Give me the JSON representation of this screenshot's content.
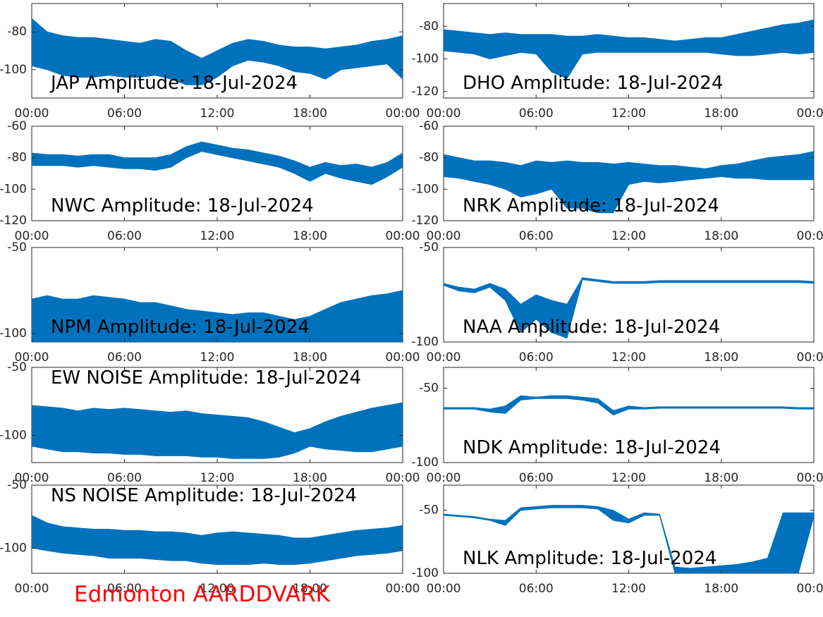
{
  "chart_data": [
    {
      "type": "band",
      "title": "JAP Amplitude: 18-Jul-2024",
      "title_position": "bottom",
      "color": "#0072bd",
      "x": [
        0,
        1,
        2,
        3,
        4,
        5,
        6,
        7,
        8,
        9,
        10,
        11,
        12,
        13,
        14,
        15,
        16,
        17,
        18,
        19,
        20,
        21,
        22,
        23,
        24
      ],
      "high": [
        -73,
        -80,
        -82,
        -83,
        -83,
        -84,
        -85,
        -86,
        -84,
        -85,
        -90,
        -94,
        -90,
        -86,
        -84,
        -85,
        -87,
        -88,
        -88,
        -89,
        -88,
        -87,
        -85,
        -84,
        -82
      ],
      "low": [
        -98,
        -100,
        -103,
        -104,
        -104,
        -103,
        -104,
        -104,
        -103,
        -105,
        -108,
        -108,
        -104,
        -98,
        -95,
        -96,
        -98,
        -101,
        -102,
        -105,
        -100,
        -99,
        -98,
        -97,
        -105
      ],
      "xlim": [
        0,
        24
      ],
      "xticks": [
        {
          "value": 0,
          "label": "00:00"
        },
        {
          "value": 6,
          "label": "06:00"
        },
        {
          "value": 12,
          "label": "12:00"
        },
        {
          "value": 18,
          "label": "18:00"
        },
        {
          "value": 24,
          "label": "00:00"
        }
      ],
      "ylim": [
        -115,
        -65
      ],
      "yticks": [
        -100,
        -80
      ]
    },
    {
      "type": "band",
      "title": "DHO Amplitude: 18-Jul-2024",
      "title_position": "bottom",
      "color": "#0072bd",
      "x": [
        0,
        1,
        2,
        3,
        4,
        5,
        6,
        7,
        8,
        9,
        10,
        11,
        12,
        13,
        14,
        15,
        16,
        17,
        18,
        19,
        20,
        21,
        22,
        23,
        24
      ],
      "high": [
        -82,
        -83,
        -84,
        -85,
        -84,
        -85,
        -85,
        -85,
        -86,
        -86,
        -85,
        -86,
        -87,
        -87,
        -88,
        -89,
        -88,
        -87,
        -87,
        -85,
        -83,
        -81,
        -79,
        -78,
        -76
      ],
      "low": [
        -95,
        -96,
        -97,
        -100,
        -98,
        -96,
        -97,
        -108,
        -112,
        -97,
        -96,
        -96,
        -96,
        -96,
        -96,
        -96,
        -96,
        -96,
        -97,
        -98,
        -98,
        -97,
        -96,
        -97,
        -96
      ],
      "xlim": [
        0,
        24
      ],
      "xticks": [
        {
          "value": 0,
          "label": "00:00"
        },
        {
          "value": 6,
          "label": "06:00"
        },
        {
          "value": 12,
          "label": "12:00"
        },
        {
          "value": 18,
          "label": "18:00"
        },
        {
          "value": 24,
          "label": "00:00"
        }
      ],
      "ylim": [
        -124,
        -66
      ],
      "yticks": [
        -120,
        -100,
        -80
      ]
    },
    {
      "type": "band",
      "title": "NWC Amplitude: 18-Jul-2024",
      "title_position": "bottom",
      "color": "#0072bd",
      "x": [
        0,
        1,
        2,
        3,
        4,
        5,
        6,
        7,
        8,
        9,
        10,
        11,
        12,
        13,
        14,
        15,
        16,
        17,
        18,
        19,
        20,
        21,
        22,
        23,
        24
      ],
      "high": [
        -77,
        -78,
        -78,
        -79,
        -78,
        -78,
        -80,
        -80,
        -80,
        -78,
        -73,
        -70,
        -72,
        -74,
        -75,
        -77,
        -79,
        -82,
        -86,
        -83,
        -85,
        -84,
        -86,
        -83,
        -77
      ],
      "low": [
        -85,
        -85,
        -85,
        -86,
        -85,
        -86,
        -87,
        -87,
        -88,
        -86,
        -80,
        -76,
        -78,
        -80,
        -82,
        -84,
        -86,
        -90,
        -95,
        -90,
        -93,
        -95,
        -97,
        -92,
        -86
      ],
      "xlim": [
        0,
        24
      ],
      "xticks": [
        {
          "value": 0,
          "label": "00:00"
        },
        {
          "value": 6,
          "label": "06:00"
        },
        {
          "value": 12,
          "label": "12:00"
        },
        {
          "value": 18,
          "label": "18:00"
        },
        {
          "value": 24,
          "label": "00:00"
        }
      ],
      "ylim": [
        -120,
        -60
      ],
      "yticks": [
        -120,
        -100,
        -80,
        -60
      ]
    },
    {
      "type": "band",
      "title": "NRK Amplitude: 18-Jul-2024",
      "title_position": "bottom",
      "color": "#0072bd",
      "x": [
        0,
        1,
        2,
        3,
        4,
        5,
        6,
        7,
        8,
        9,
        10,
        11,
        12,
        13,
        14,
        15,
        16,
        17,
        18,
        19,
        20,
        21,
        22,
        23,
        24
      ],
      "high": [
        -78,
        -80,
        -82,
        -82,
        -83,
        -85,
        -82,
        -83,
        -82,
        -83,
        -83,
        -84,
        -83,
        -84,
        -85,
        -85,
        -86,
        -87,
        -85,
        -84,
        -82,
        -80,
        -79,
        -78,
        -76
      ],
      "low": [
        -92,
        -93,
        -95,
        -97,
        -100,
        -105,
        -103,
        -100,
        -112,
        -112,
        -115,
        -115,
        -97,
        -95,
        -96,
        -95,
        -94,
        -93,
        -92,
        -93,
        -93,
        -94,
        -94,
        -94,
        -94
      ],
      "xlim": [
        0,
        24
      ],
      "xticks": [
        {
          "value": 0,
          "label": "00:00"
        },
        {
          "value": 6,
          "label": "06:00"
        },
        {
          "value": 12,
          "label": "12:00"
        },
        {
          "value": 18,
          "label": "18:00"
        },
        {
          "value": 24,
          "label": "00:00"
        }
      ],
      "ylim": [
        -120,
        -60
      ],
      "yticks": [
        -120,
        -100,
        -80,
        -60
      ]
    },
    {
      "type": "band",
      "title": "NPM Amplitude: 18-Jul-2024",
      "title_position": "bottom",
      "color": "#0072bd",
      "x": [
        0,
        1,
        2,
        3,
        4,
        5,
        6,
        7,
        8,
        9,
        10,
        11,
        12,
        13,
        14,
        15,
        16,
        17,
        18,
        19,
        20,
        21,
        22,
        23,
        24
      ],
      "high": [
        -80,
        -78,
        -80,
        -80,
        -78,
        -79,
        -80,
        -82,
        -82,
        -84,
        -86,
        -87,
        -88,
        -89,
        -88,
        -88,
        -90,
        -92,
        -90,
        -86,
        -82,
        -80,
        -78,
        -77,
        -75
      ],
      "low": [
        -105,
        -105,
        -105,
        -105,
        -105,
        -105,
        -105,
        -105,
        -105,
        -105,
        -105,
        -105,
        -105,
        -105,
        -105,
        -105,
        -105,
        -105,
        -105,
        -105,
        -105,
        -105,
        -105,
        -105,
        -105
      ],
      "xlim": [
        0,
        24
      ],
      "xticks": [
        {
          "value": 0,
          "label": "00:00"
        },
        {
          "value": 6,
          "label": "06:00"
        },
        {
          "value": 12,
          "label": "12:00"
        },
        {
          "value": 18,
          "label": "18:00"
        },
        {
          "value": 24,
          "label": "00:00"
        }
      ],
      "ylim": [
        -105,
        -50
      ],
      "yticks": [
        -100,
        -50
      ]
    },
    {
      "type": "band",
      "title": "NAA Amplitude: 18-Jul-2024",
      "title_position": "bottom",
      "color": "#0072bd",
      "x": [
        0,
        1,
        2,
        3,
        4,
        5,
        6,
        7,
        8,
        9,
        10,
        11,
        12,
        13,
        14,
        15,
        16,
        17,
        18,
        19,
        20,
        21,
        22,
        23,
        24
      ],
      "high": [
        -69,
        -71,
        -72,
        -69,
        -72,
        -80,
        -75,
        -78,
        -80,
        -66,
        -67,
        -68,
        -68,
        -68,
        -67.5,
        -67.5,
        -67.5,
        -67.5,
        -67.5,
        -67.5,
        -67.5,
        -67.5,
        -67.5,
        -67.5,
        -68
      ],
      "low": [
        -70,
        -73,
        -74,
        -71,
        -78,
        -95,
        -88,
        -95,
        -98,
        -67,
        -68,
        -69,
        -69,
        -69,
        -68.5,
        -68.5,
        -68.5,
        -68.5,
        -68.5,
        -68.5,
        -68.5,
        -68.5,
        -68.5,
        -68.5,
        -69
      ],
      "xlim": [
        0,
        24
      ],
      "xticks": [
        {
          "value": 0,
          "label": "00:00"
        },
        {
          "value": 6,
          "label": "06:00"
        },
        {
          "value": 12,
          "label": "12:00"
        },
        {
          "value": 18,
          "label": "18:00"
        },
        {
          "value": 24,
          "label": "00:00"
        }
      ],
      "ylim": [
        -100,
        -50
      ],
      "yticks": [
        -100,
        -50
      ]
    },
    {
      "type": "band",
      "title": "EW NOISE Amplitude: 18-Jul-2024",
      "title_position": "top",
      "color": "#0072bd",
      "x": [
        0,
        1,
        2,
        3,
        4,
        5,
        6,
        7,
        8,
        9,
        10,
        11,
        12,
        13,
        14,
        15,
        16,
        17,
        18,
        19,
        20,
        21,
        22,
        23,
        24
      ],
      "high": [
        -78,
        -79,
        -80,
        -82,
        -80,
        -81,
        -80,
        -81,
        -82,
        -83,
        -82,
        -84,
        -85,
        -86,
        -87,
        -90,
        -94,
        -98,
        -95,
        -90,
        -86,
        -83,
        -80,
        -78,
        -76
      ],
      "low": [
        -108,
        -110,
        -112,
        -112,
        -113,
        -113,
        -114,
        -114,
        -115,
        -115,
        -115,
        -116,
        -116,
        -117,
        -117,
        -117,
        -116,
        -113,
        -108,
        -110,
        -111,
        -112,
        -112,
        -110,
        -108
      ],
      "xlim": [
        0,
        24
      ],
      "xticks": [
        {
          "value": 0,
          "label": "00:00"
        },
        {
          "value": 6,
          "label": "06:00"
        },
        {
          "value": 12,
          "label": "12:00"
        },
        {
          "value": 18,
          "label": "18:00"
        },
        {
          "value": 24,
          "label": "00:00"
        }
      ],
      "ylim": [
        -120,
        -50
      ],
      "yticks": [
        -100,
        -50
      ]
    },
    {
      "type": "band",
      "title": "NDK Amplitude: 18-Jul-2024",
      "title_position": "bottom",
      "color": "#0072bd",
      "x": [
        0,
        1,
        2,
        3,
        4,
        5,
        6,
        7,
        8,
        9,
        10,
        11,
        12,
        13,
        14,
        15,
        16,
        17,
        18,
        19,
        20,
        21,
        22,
        23,
        24
      ],
      "high": [
        -63,
        -63,
        -63,
        -64,
        -62,
        -55,
        -56,
        -55,
        -55,
        -56,
        -57,
        -65,
        -62,
        -63,
        -62.5,
        -62.5,
        -62.5,
        -62.5,
        -62.5,
        -62.5,
        -62.5,
        -62.5,
        -62.5,
        -63,
        -63
      ],
      "low": [
        -64,
        -64,
        -64,
        -66,
        -67,
        -58,
        -57,
        -57,
        -57,
        -58,
        -60,
        -68,
        -64,
        -64,
        -63.5,
        -63.5,
        -63.5,
        -63.5,
        -63.5,
        -63.5,
        -63.5,
        -63.5,
        -63.5,
        -64,
        -64
      ],
      "xlim": [
        0,
        24
      ],
      "xticks": [
        {
          "value": 0,
          "label": "00:00"
        },
        {
          "value": 6,
          "label": "06:00"
        },
        {
          "value": 12,
          "label": "12:00"
        },
        {
          "value": 18,
          "label": "18:00"
        },
        {
          "value": 24,
          "label": "00:00"
        }
      ],
      "ylim": [
        -100,
        -36
      ],
      "yticks": [
        -100,
        -50
      ]
    },
    {
      "type": "band",
      "title": "NS NOISE Amplitude: 18-Jul-2024",
      "title_position": "top",
      "color": "#0072bd",
      "x": [
        0,
        1,
        2,
        3,
        4,
        5,
        6,
        7,
        8,
        9,
        10,
        11,
        12,
        13,
        14,
        15,
        16,
        17,
        18,
        19,
        20,
        21,
        22,
        23,
        24
      ],
      "high": [
        -74,
        -80,
        -83,
        -84,
        -85,
        -85,
        -86,
        -86,
        -87,
        -87,
        -88,
        -90,
        -88,
        -87,
        -88,
        -89,
        -90,
        -92,
        -92,
        -90,
        -88,
        -86,
        -85,
        -84,
        -82
      ],
      "low": [
        -100,
        -102,
        -104,
        -105,
        -106,
        -108,
        -108,
        -108,
        -109,
        -110,
        -110,
        -112,
        -113,
        -113,
        -113,
        -112,
        -113,
        -113,
        -112,
        -110,
        -108,
        -106,
        -105,
        -104,
        -102
      ],
      "xlim": [
        0,
        24
      ],
      "xticks": [
        {
          "value": 0,
          "label": "00:00"
        },
        {
          "value": 6,
          "label": "06:00"
        },
        {
          "value": 12,
          "label": "12:00"
        },
        {
          "value": 18,
          "label": "18:00"
        },
        {
          "value": 24,
          "label": "00:00"
        }
      ],
      "ylim": [
        -120,
        -50
      ],
      "yticks": [
        -100,
        -50
      ]
    },
    {
      "type": "band",
      "title": "NLK Amplitude: 18-Jul-2024",
      "title_position": "bottom",
      "color": "#0072bd",
      "x": [
        0,
        1,
        2,
        3,
        4,
        5,
        6,
        7,
        8,
        9,
        10,
        11,
        12,
        13,
        14,
        15,
        16,
        17,
        18,
        19,
        20,
        21,
        22,
        23,
        24
      ],
      "high": [
        -53,
        -54,
        -55,
        -57,
        -58,
        -48,
        -47,
        -46,
        -46,
        -46,
        -47,
        -50,
        -57,
        -52,
        -53,
        -95,
        -96,
        -95,
        -94,
        -93,
        -91,
        -88,
        -52,
        -52,
        -52
      ],
      "low": [
        -54,
        -55,
        -56,
        -58,
        -62,
        -50,
        -49,
        -48,
        -48,
        -48,
        -49,
        -58,
        -60,
        -54,
        -54,
        -100,
        -100,
        -100,
        -100,
        -100,
        -100,
        -100,
        -100,
        -100,
        -55
      ],
      "xlim": [
        0,
        24
      ],
      "xticks": [
        {
          "value": 0,
          "label": "00:00"
        },
        {
          "value": 6,
          "label": "06:00"
        },
        {
          "value": 12,
          "label": "12:00"
        },
        {
          "value": 18,
          "label": "18:00"
        },
        {
          "value": 24,
          "label": "00:00"
        }
      ],
      "ylim": [
        -100,
        -30
      ],
      "yticks": [
        -100,
        -50
      ]
    }
  ],
  "footer": "Edmonton AARDDVARK"
}
